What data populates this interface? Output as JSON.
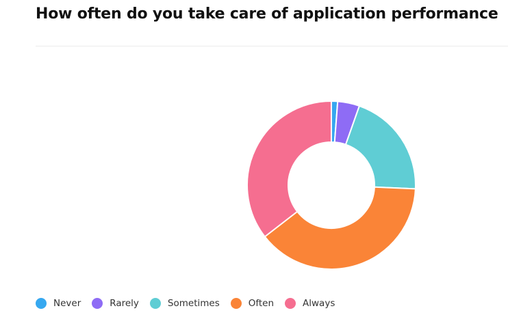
{
  "title": "How often do you take care of application performance",
  "chart_data": {
    "type": "pie",
    "variant": "donut",
    "legend": "bottom-left",
    "categories": [
      "Never",
      "Rarely",
      "Sometimes",
      "Often",
      "Always"
    ],
    "values": [
      1.2,
      4.2,
      20.3,
      38.8,
      35.5
    ],
    "unit": "%",
    "colors": [
      "#36a8f0",
      "#8e6cf5",
      "#5fcdd4",
      "#fa8437",
      "#f56e90"
    ]
  }
}
